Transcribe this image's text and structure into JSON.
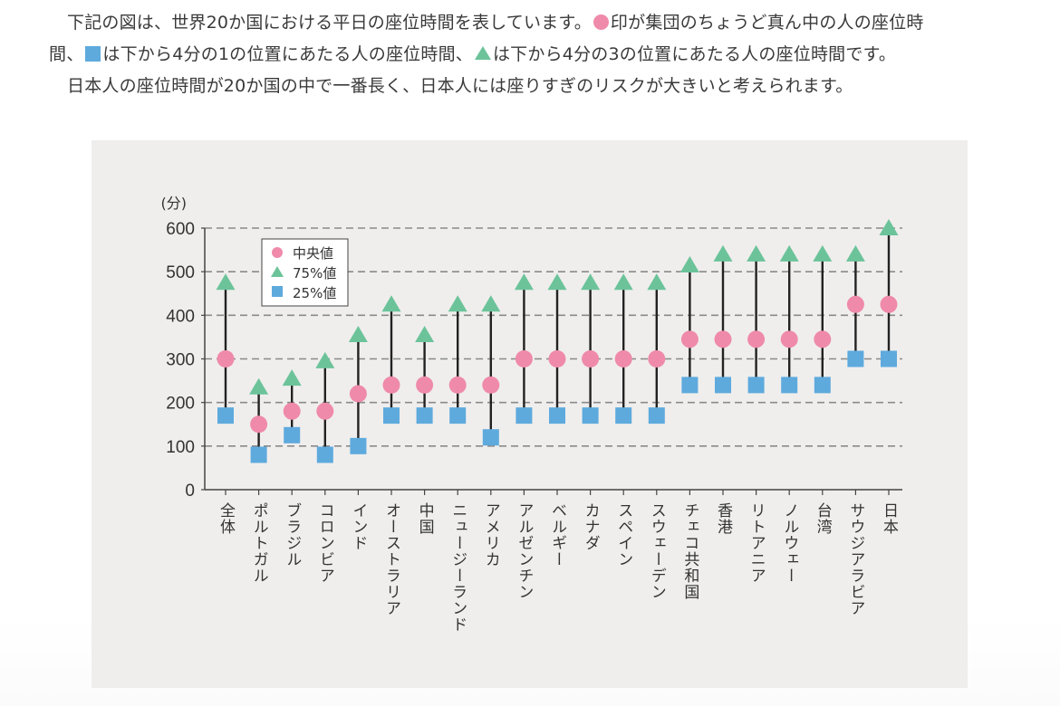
{
  "intro": {
    "line1_a": "下記の図は、世界20か国における平日の座位時間を表しています。",
    "line1_b": "印が集団のちょうど真ん中の人の座位時",
    "line2_a": "間、",
    "line2_b": "は下から4分の1の位置にあたる人の座位時間、",
    "line2_c": "は下から4分の3の位置にあたる人の座位時間です。",
    "line3": "日本人の座位時間が20か国の中で一番長く、日本人には座りすぎのリスクが大きいと考えられます。"
  },
  "colors": {
    "median": "#ef8aaa",
    "q3": "#6cc39a",
    "q1": "#5eaadd",
    "panel": "#efeeed",
    "grid": "#8a8a8a",
    "line": "#222222"
  },
  "chart_data": {
    "type": "range-dot",
    "title": "",
    "ylabel": "(分)",
    "xlabel": "",
    "ylim": [
      0,
      600
    ],
    "yticks": [
      0,
      100,
      200,
      300,
      400,
      500,
      600
    ],
    "grid": true,
    "legend_position": "top-left",
    "legend": [
      {
        "label": "中央値",
        "marker": "circle",
        "series": "median"
      },
      {
        "label": "75%値",
        "marker": "triangle",
        "series": "q3"
      },
      {
        "label": "25%値",
        "marker": "square",
        "series": "q1"
      }
    ],
    "categories": [
      "全体",
      "ポルトガル",
      "ブラジル",
      "コロンビア",
      "インド",
      "オーストラリア",
      "中国",
      "ニュージーランド",
      "アメリカ",
      "アルゼンチン",
      "ベルギー",
      "カナダ",
      "スペイン",
      "スウェーデン",
      "チェコ共和国",
      "香港",
      "リトアニア",
      "ノルウェー",
      "台湾",
      "サウジアラビア",
      "日本"
    ],
    "series": [
      {
        "name": "75%値",
        "key": "q3",
        "values": [
          475,
          235,
          255,
          295,
          355,
          425,
          355,
          425,
          425,
          475,
          475,
          475,
          475,
          475,
          515,
          540,
          540,
          540,
          540,
          540,
          600
        ]
      },
      {
        "name": "中央値",
        "key": "median",
        "values": [
          300,
          150,
          180,
          180,
          220,
          240,
          240,
          240,
          240,
          300,
          300,
          300,
          300,
          300,
          345,
          345,
          345,
          345,
          345,
          425,
          425
        ]
      },
      {
        "name": "25%値",
        "key": "q1",
        "values": [
          170,
          80,
          125,
          80,
          100,
          170,
          170,
          170,
          120,
          170,
          170,
          170,
          170,
          170,
          240,
          240,
          240,
          240,
          240,
          300,
          300
        ]
      }
    ]
  }
}
